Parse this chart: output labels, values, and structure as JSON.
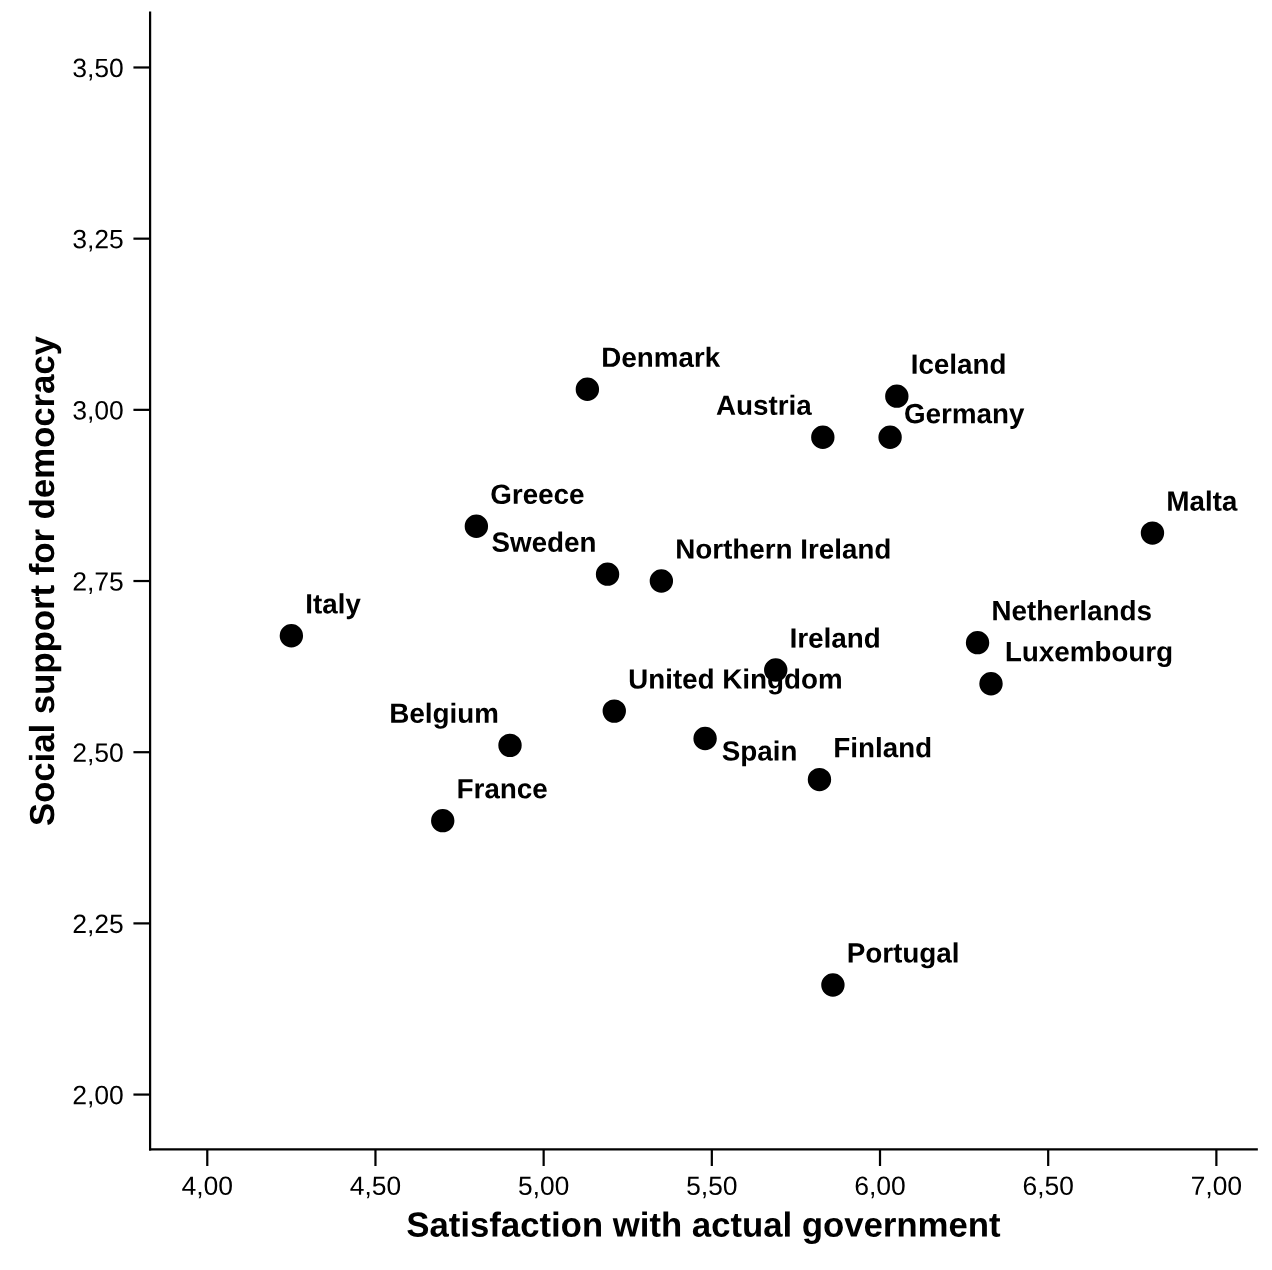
{
  "chart_data": {
    "type": "scatter",
    "xlabel": "Satisfaction with actual government",
    "ylabel": "Social support for democracy",
    "xlim": [
      3.83,
      7.12
    ],
    "ylim": [
      1.92,
      3.58
    ],
    "xticks": [
      {
        "value": 4.0,
        "label": "4,00"
      },
      {
        "value": 4.5,
        "label": "4,50"
      },
      {
        "value": 5.0,
        "label": "5,00"
      },
      {
        "value": 5.5,
        "label": "5,50"
      },
      {
        "value": 6.0,
        "label": "6,00"
      },
      {
        "value": 6.5,
        "label": "6,50"
      },
      {
        "value": 7.0,
        "label": "7,00"
      }
    ],
    "yticks": [
      {
        "value": 2.0,
        "label": "2,00"
      },
      {
        "value": 2.25,
        "label": "2,25"
      },
      {
        "value": 2.5,
        "label": "2,50"
      },
      {
        "value": 2.75,
        "label": "2,75"
      },
      {
        "value": 3.0,
        "label": "3,00"
      },
      {
        "value": 3.25,
        "label": "3,25"
      },
      {
        "value": 3.5,
        "label": "3,50"
      }
    ],
    "grid": false,
    "legend": false,
    "marker": "circle",
    "series": [
      {
        "color": "#000000",
        "x": [
          5.13,
          4.8,
          5.19,
          5.35,
          4.25,
          5.21,
          4.9,
          5.48,
          4.7,
          6.05,
          5.83,
          6.03,
          6.81,
          6.29,
          6.33,
          5.69,
          5.82,
          5.86
        ],
        "values": [
          3.03,
          2.83,
          2.76,
          2.75,
          2.67,
          2.56,
          2.51,
          2.52,
          2.4,
          3.02,
          2.96,
          2.96,
          2.82,
          2.66,
          2.6,
          2.62,
          2.46,
          2.16
        ]
      }
    ],
    "annotations": [
      {
        "text": "Denmark",
        "x": 5.13,
        "y": 3.03
      },
      {
        "text": "Greece",
        "x": 4.8,
        "y": 2.83
      },
      {
        "text": "Sweden",
        "x": 5.19,
        "y": 2.76
      },
      {
        "text": "Northern Ireland",
        "x": 5.35,
        "y": 2.75
      },
      {
        "text": "Italy",
        "x": 4.25,
        "y": 2.67
      },
      {
        "text": "United Kingdom",
        "x": 5.21,
        "y": 2.56
      },
      {
        "text": "Belgium",
        "x": 4.9,
        "y": 2.51
      },
      {
        "text": "Spain",
        "x": 5.48,
        "y": 2.52
      },
      {
        "text": "France",
        "x": 4.7,
        "y": 2.4
      },
      {
        "text": "Iceland",
        "x": 6.05,
        "y": 3.02
      },
      {
        "text": "Austria",
        "x": 5.83,
        "y": 2.96
      },
      {
        "text": "Germany",
        "x": 6.03,
        "y": 2.96
      },
      {
        "text": "Malta",
        "x": 6.81,
        "y": 2.82
      },
      {
        "text": "Netherlands",
        "x": 6.29,
        "y": 2.66
      },
      {
        "text": "Luxembourg",
        "x": 6.33,
        "y": 2.6
      },
      {
        "text": "Ireland",
        "x": 5.69,
        "y": 2.62
      },
      {
        "text": "Finland",
        "x": 5.82,
        "y": 2.46
      },
      {
        "text": "Portugal",
        "x": 5.86,
        "y": 2.16
      }
    ]
  }
}
